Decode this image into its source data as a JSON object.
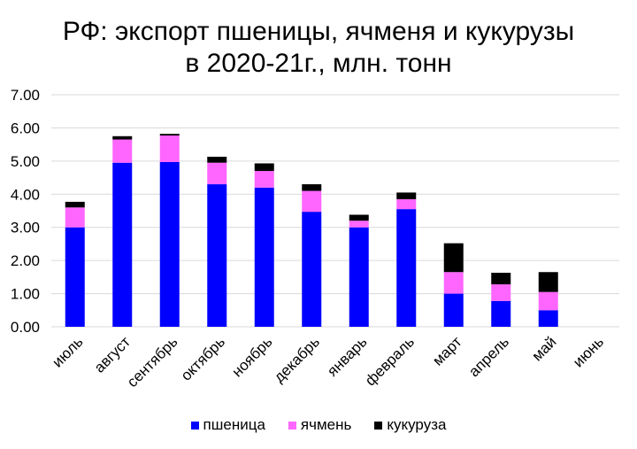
{
  "chart_data": {
    "type": "bar",
    "stacked": true,
    "title": "РФ: экспорт пшеницы, ячменя и кукурузы",
    "subtitle": "в 2020-21г., млн. тонн",
    "xlabel": "",
    "ylabel": "",
    "ylim": [
      0,
      7
    ],
    "ytick_step": 1,
    "ytick_labels": [
      "0.00",
      "1.00",
      "2.00",
      "3.00",
      "4.00",
      "5.00",
      "6.00",
      "7.00"
    ],
    "grid": true,
    "legend_position": "bottom",
    "categories": [
      "июль",
      "август",
      "сентябрь",
      "октябрь",
      "ноябрь",
      "декабрь",
      "январь",
      "февраль",
      "март",
      "апрель",
      "май",
      "июнь"
    ],
    "series": [
      {
        "name": "пшеница",
        "color": "#0000ff",
        "values": [
          3.0,
          4.95,
          4.97,
          4.3,
          4.2,
          3.47,
          3.0,
          3.55,
          1.0,
          0.78,
          0.5,
          0
        ]
      },
      {
        "name": "ячмень",
        "color": "#ff66ff",
        "values": [
          0.6,
          0.7,
          0.8,
          0.65,
          0.5,
          0.63,
          0.2,
          0.3,
          0.65,
          0.5,
          0.55,
          0
        ]
      },
      {
        "name": "кукуруза",
        "color": "#000000",
        "values": [
          0.17,
          0.1,
          0.05,
          0.18,
          0.23,
          0.2,
          0.18,
          0.2,
          0.87,
          0.35,
          0.6,
          0
        ]
      }
    ]
  }
}
